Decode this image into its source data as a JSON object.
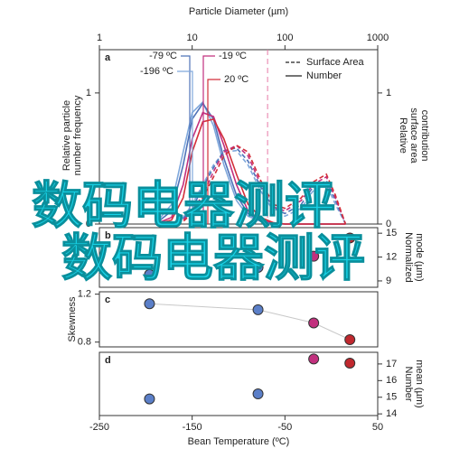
{
  "chart_data": [
    {
      "type": "line",
      "panel": "a",
      "xlabel": "Particle Diameter (µm)",
      "xscale": "log",
      "xlim": [
        1,
        1000
      ],
      "xticks": [
        1,
        10,
        100,
        1000
      ],
      "ylabel": [
        "Relative particle",
        "number frequency"
      ],
      "y2label": [
        "Relative",
        "surface area",
        "contribution"
      ],
      "ylim": [
        0,
        1.33
      ],
      "yticks": [
        0,
        1
      ],
      "y2lim": [
        0,
        1.33
      ],
      "y2ticks": [
        0,
        1
      ],
      "vline": 65,
      "vline_color": "#e87aa8",
      "legend": [
        {
          "label": "Surface Area",
          "dashed": true
        },
        {
          "label": "Number",
          "dashed": false
        }
      ],
      "x": [
        4,
        6,
        8,
        10,
        13,
        17,
        22,
        30,
        40,
        55,
        75,
        100,
        150,
        200,
        280,
        350,
        450
      ],
      "series": [
        {
          "name": "-196 ºC",
          "color": "#7fa8dc",
          "number": [
            0,
            0.15,
            0.55,
            0.85,
            0.93,
            0.75,
            0.45,
            0.18,
            0.06,
            0.02,
            0,
            0,
            0,
            0,
            0,
            0,
            0
          ],
          "surface_area": [
            0,
            0,
            0.05,
            0.15,
            0.3,
            0.45,
            0.55,
            0.56,
            0.45,
            0.25,
            0.1,
            0.06,
            0.12,
            0.25,
            0.3,
            0.15,
            0
          ]
        },
        {
          "name": "-79 ºC",
          "color": "#4f73b8",
          "number": [
            0,
            0.1,
            0.45,
            0.8,
            0.92,
            0.8,
            0.5,
            0.22,
            0.08,
            0.02,
            0,
            0,
            0,
            0,
            0,
            0,
            0
          ],
          "surface_area": [
            0,
            0,
            0.04,
            0.12,
            0.28,
            0.43,
            0.56,
            0.58,
            0.48,
            0.28,
            0.12,
            0.08,
            0.15,
            0.28,
            0.33,
            0.18,
            0
          ]
        },
        {
          "name": "-19 ºC",
          "color": "#c2307e",
          "number": [
            0,
            0.05,
            0.3,
            0.65,
            0.85,
            0.82,
            0.6,
            0.3,
            0.1,
            0.03,
            0.01,
            0,
            0,
            0,
            0,
            0,
            0
          ],
          "surface_area": [
            0,
            0,
            0.03,
            0.1,
            0.22,
            0.4,
            0.55,
            0.6,
            0.52,
            0.3,
            0.13,
            0.1,
            0.18,
            0.3,
            0.36,
            0.2,
            0
          ]
        },
        {
          "name": "20 ºC",
          "color": "#d32f3a",
          "number": [
            0,
            0.03,
            0.2,
            0.55,
            0.78,
            0.8,
            0.65,
            0.38,
            0.15,
            0.05,
            0.01,
            0,
            0,
            0,
            0,
            0,
            0
          ],
          "surface_area": [
            0,
            0,
            0.02,
            0.08,
            0.2,
            0.36,
            0.52,
            0.6,
            0.55,
            0.33,
            0.15,
            0.12,
            0.2,
            0.32,
            0.38,
            0.22,
            0
          ]
        }
      ]
    },
    {
      "type": "scatter",
      "panel": "b",
      "ylabel": [
        "Normalized",
        "mode (µm)"
      ],
      "yaxis_side": "right",
      "xlim": [
        -250,
        50
      ],
      "ylim": [
        8.2,
        15.7
      ],
      "yticks": [
        9,
        12,
        15
      ],
      "x": [
        -196,
        -79,
        -19,
        20
      ],
      "values": [
        9.8,
        10.7,
        12.1,
        14.4
      ],
      "colors": [
        "#5b7fc8",
        "#5b7fc8",
        "#c2307e",
        "#c0282e"
      ]
    },
    {
      "type": "scatter",
      "panel": "c",
      "ylabel": [
        "Skewness"
      ],
      "yaxis_side": "left",
      "fit_line": true,
      "xlim": [
        -250,
        50
      ],
      "ylim": [
        0.76,
        1.22
      ],
      "yticks": [
        0.8,
        1.2
      ],
      "x": [
        -196,
        -79,
        -19,
        20
      ],
      "values": [
        1.12,
        1.07,
        0.96,
        0.82
      ],
      "colors": [
        "#5b7fc8",
        "#5b7fc8",
        "#c2307e",
        "#c0282e"
      ]
    },
    {
      "type": "scatter",
      "panel": "d",
      "ylabel": [
        "Number",
        "mean (µm)"
      ],
      "yaxis_side": "right",
      "xlabel": "Bean Temperature (ºC)",
      "xlim": [
        -250,
        50
      ],
      "xticks": [
        -250,
        -150,
        -50,
        50
      ],
      "ylim": [
        13.9,
        17.7
      ],
      "yticks": [
        14,
        15,
        16,
        17
      ],
      "x": [
        -196,
        -79,
        -19,
        20
      ],
      "values": [
        14.9,
        15.2,
        17.3,
        17.05
      ],
      "colors": [
        "#5b7fc8",
        "#5b7fc8",
        "#c2307e",
        "#c0282e"
      ]
    }
  ],
  "watermark": [
    "数码电器测评",
    "数码电器测评"
  ]
}
